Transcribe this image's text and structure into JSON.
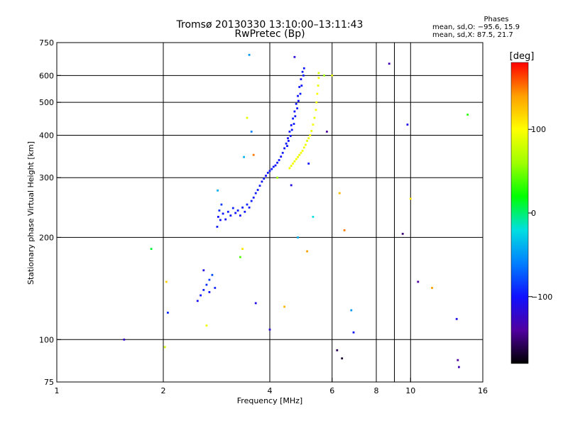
{
  "header": {
    "title": "Tromsø 20130330 13:10:00–13:11:43",
    "subtitle": "RwPretec (Bp)"
  },
  "stats": {
    "heading": "Phases",
    "line_o": "mean, sd,O: −95.6, 15.9",
    "line_x": "mean, sd,X:  87.5, 21.7"
  },
  "colorbar": {
    "label": "[deg]",
    "range": [
      -180,
      180
    ],
    "ticks": [
      100,
      0,
      -100
    ],
    "tick_labels": [
      "100",
      "0",
      "−100"
    ],
    "colors": [
      "#000000",
      "#5000a0",
      "#1010ff",
      "#0080ff",
      "#00e0e0",
      "#00ff00",
      "#a0ff00",
      "#ffff00",
      "#ffa000",
      "#ff0000"
    ]
  },
  "chart_data": {
    "type": "scatter",
    "xlabel": "Frequency [MHz]",
    "ylabel": "Stationary phase Virtual Height [km]",
    "xscale": "log",
    "yscale": "log",
    "xlim": [
      1,
      16
    ],
    "ylim": [
      75,
      750
    ],
    "x_ticks": [
      1,
      2,
      4,
      6,
      8,
      9,
      10,
      16
    ],
    "x_tick_labels": [
      "1",
      "2",
      "4",
      "6",
      "8",
      "",
      "10",
      "16"
    ],
    "x_grid": [
      2,
      4,
      6,
      8,
      9,
      10
    ],
    "y_ticks": [
      75,
      100,
      200,
      300,
      400,
      500,
      600,
      750
    ],
    "y_tick_labels": [
      "75",
      "100",
      "200",
      "300",
      "400",
      "500",
      "600",
      "750"
    ],
    "y_grid": [
      100,
      200,
      300,
      400,
      500,
      600
    ],
    "grid": true,
    "point_color_meaning": "phase [deg]",
    "points": [
      [
        2.84,
        215,
        -95
      ],
      [
        2.86,
        230,
        -100
      ],
      [
        2.88,
        240,
        -90
      ],
      [
        2.9,
        225,
        -100
      ],
      [
        2.92,
        250,
        -85
      ],
      [
        2.95,
        235,
        -98
      ],
      [
        3.0,
        226,
        -103
      ],
      [
        3.05,
        238,
        -96
      ],
      [
        3.1,
        232,
        -99
      ],
      [
        3.15,
        244,
        -94
      ],
      [
        3.2,
        236,
        -101
      ],
      [
        3.25,
        240,
        -97
      ],
      [
        3.3,
        232,
        -102
      ],
      [
        3.35,
        245,
        -95
      ],
      [
        3.4,
        238,
        -99
      ],
      [
        3.45,
        250,
        -94
      ],
      [
        3.5,
        245,
        -98
      ],
      [
        3.55,
        256,
        -95
      ],
      [
        3.6,
        262,
        -100
      ],
      [
        3.65,
        270,
        -96
      ],
      [
        3.7,
        276,
        -99
      ],
      [
        3.75,
        284,
        -95
      ],
      [
        3.8,
        292,
        -100
      ],
      [
        3.85,
        298,
        -97
      ],
      [
        3.9,
        304,
        -101
      ],
      [
        3.95,
        310,
        -96
      ],
      [
        4.0,
        314,
        -98
      ],
      [
        4.05,
        318,
        -95
      ],
      [
        4.1,
        323,
        -100
      ],
      [
        4.15,
        326,
        -97
      ],
      [
        4.2,
        332,
        -99
      ],
      [
        4.25,
        338,
        -96
      ],
      [
        4.3,
        346,
        -101
      ],
      [
        4.35,
        355,
        -95
      ],
      [
        4.4,
        366,
        -98
      ],
      [
        4.45,
        378,
        -96
      ],
      [
        4.5,
        392,
        -100
      ],
      [
        4.55,
        410,
        -97
      ],
      [
        4.6,
        428,
        -99
      ],
      [
        4.65,
        448,
        -95
      ],
      [
        4.7,
        470,
        -100
      ],
      [
        4.75,
        495,
        -97
      ],
      [
        4.8,
        522,
        -99
      ],
      [
        4.85,
        555,
        -96
      ],
      [
        4.9,
        585,
        -101
      ],
      [
        4.95,
        615,
        -97
      ],
      [
        5.0,
        630,
        -99
      ],
      [
        4.98,
        600,
        -95
      ],
      [
        4.92,
        560,
        -98
      ],
      [
        4.88,
        530,
        -96
      ],
      [
        4.82,
        505,
        -100
      ],
      [
        4.78,
        480,
        -97
      ],
      [
        4.72,
        455,
        -99
      ],
      [
        4.68,
        432,
        -95
      ],
      [
        4.62,
        415,
        -98
      ],
      [
        4.58,
        398,
        -96
      ],
      [
        4.52,
        385,
        -100
      ],
      [
        4.48,
        372,
        -97
      ],
      [
        4.55,
        320,
        95
      ],
      [
        4.6,
        325,
        92
      ],
      [
        4.65,
        330,
        98
      ],
      [
        4.7,
        335,
        90
      ],
      [
        4.75,
        340,
        94
      ],
      [
        4.8,
        345,
        96
      ],
      [
        4.85,
        350,
        88
      ],
      [
        4.9,
        355,
        93
      ],
      [
        4.95,
        360,
        97
      ],
      [
        5.0,
        368,
        91
      ],
      [
        5.05,
        375,
        95
      ],
      [
        5.1,
        385,
        89
      ],
      [
        5.15,
        392,
        94
      ],
      [
        5.2,
        400,
        97
      ],
      [
        5.25,
        412,
        92
      ],
      [
        5.3,
        430,
        96
      ],
      [
        5.35,
        450,
        90
      ],
      [
        5.4,
        475,
        95
      ],
      [
        5.42,
        500,
        93
      ],
      [
        5.45,
        530,
        97
      ],
      [
        5.48,
        560,
        91
      ],
      [
        5.5,
        590,
        94
      ],
      [
        2.5,
        130,
        -105
      ],
      [
        2.55,
        135,
        -100
      ],
      [
        2.6,
        140,
        -95
      ],
      [
        2.65,
        145,
        -90
      ],
      [
        2.7,
        150,
        -85
      ],
      [
        2.75,
        155,
        -80
      ],
      [
        2.6,
        160,
        -110
      ],
      [
        2.7,
        138,
        -100
      ],
      [
        2.8,
        142,
        -92
      ],
      [
        1.55,
        100,
        -120
      ],
      [
        1.85,
        185,
        10
      ],
      [
        2.02,
        95,
        80
      ],
      [
        2.04,
        148,
        120
      ],
      [
        2.06,
        120,
        -90
      ],
      [
        2.65,
        110,
        95
      ],
      [
        2.85,
        275,
        -40
      ],
      [
        3.3,
        175,
        40
      ],
      [
        3.35,
        185,
        110
      ],
      [
        3.38,
        345,
        -40
      ],
      [
        3.45,
        450,
        90
      ],
      [
        3.5,
        690,
        -50
      ],
      [
        3.55,
        410,
        -60
      ],
      [
        3.6,
        350,
        150
      ],
      [
        3.65,
        128,
        -110
      ],
      [
        4.0,
        107,
        -120
      ],
      [
        4.2,
        300,
        60
      ],
      [
        4.4,
        125,
        130
      ],
      [
        4.6,
        285,
        -110
      ],
      [
        4.7,
        680,
        -115
      ],
      [
        4.8,
        200,
        -40
      ],
      [
        5.1,
        182,
        140
      ],
      [
        5.15,
        330,
        -100
      ],
      [
        5.3,
        230,
        -20
      ],
      [
        5.5,
        610,
        80
      ],
      [
        5.7,
        600,
        60
      ],
      [
        5.8,
        410,
        -140
      ],
      [
        6.0,
        600,
        90
      ],
      [
        6.2,
        93,
        -160
      ],
      [
        6.3,
        270,
        130
      ],
      [
        6.4,
        88,
        -170
      ],
      [
        6.5,
        210,
        150
      ],
      [
        6.8,
        122,
        -50
      ],
      [
        6.9,
        105,
        -100
      ],
      [
        8.7,
        650,
        -130
      ],
      [
        9.5,
        205,
        -150
      ],
      [
        9.8,
        430,
        -110
      ],
      [
        10.0,
        260,
        110
      ],
      [
        10.5,
        148,
        -140
      ],
      [
        11.5,
        142,
        140
      ],
      [
        13.5,
        115,
        -110
      ],
      [
        13.6,
        87,
        -140
      ],
      [
        13.7,
        83,
        -130
      ],
      [
        14.5,
        460,
        30
      ]
    ]
  }
}
